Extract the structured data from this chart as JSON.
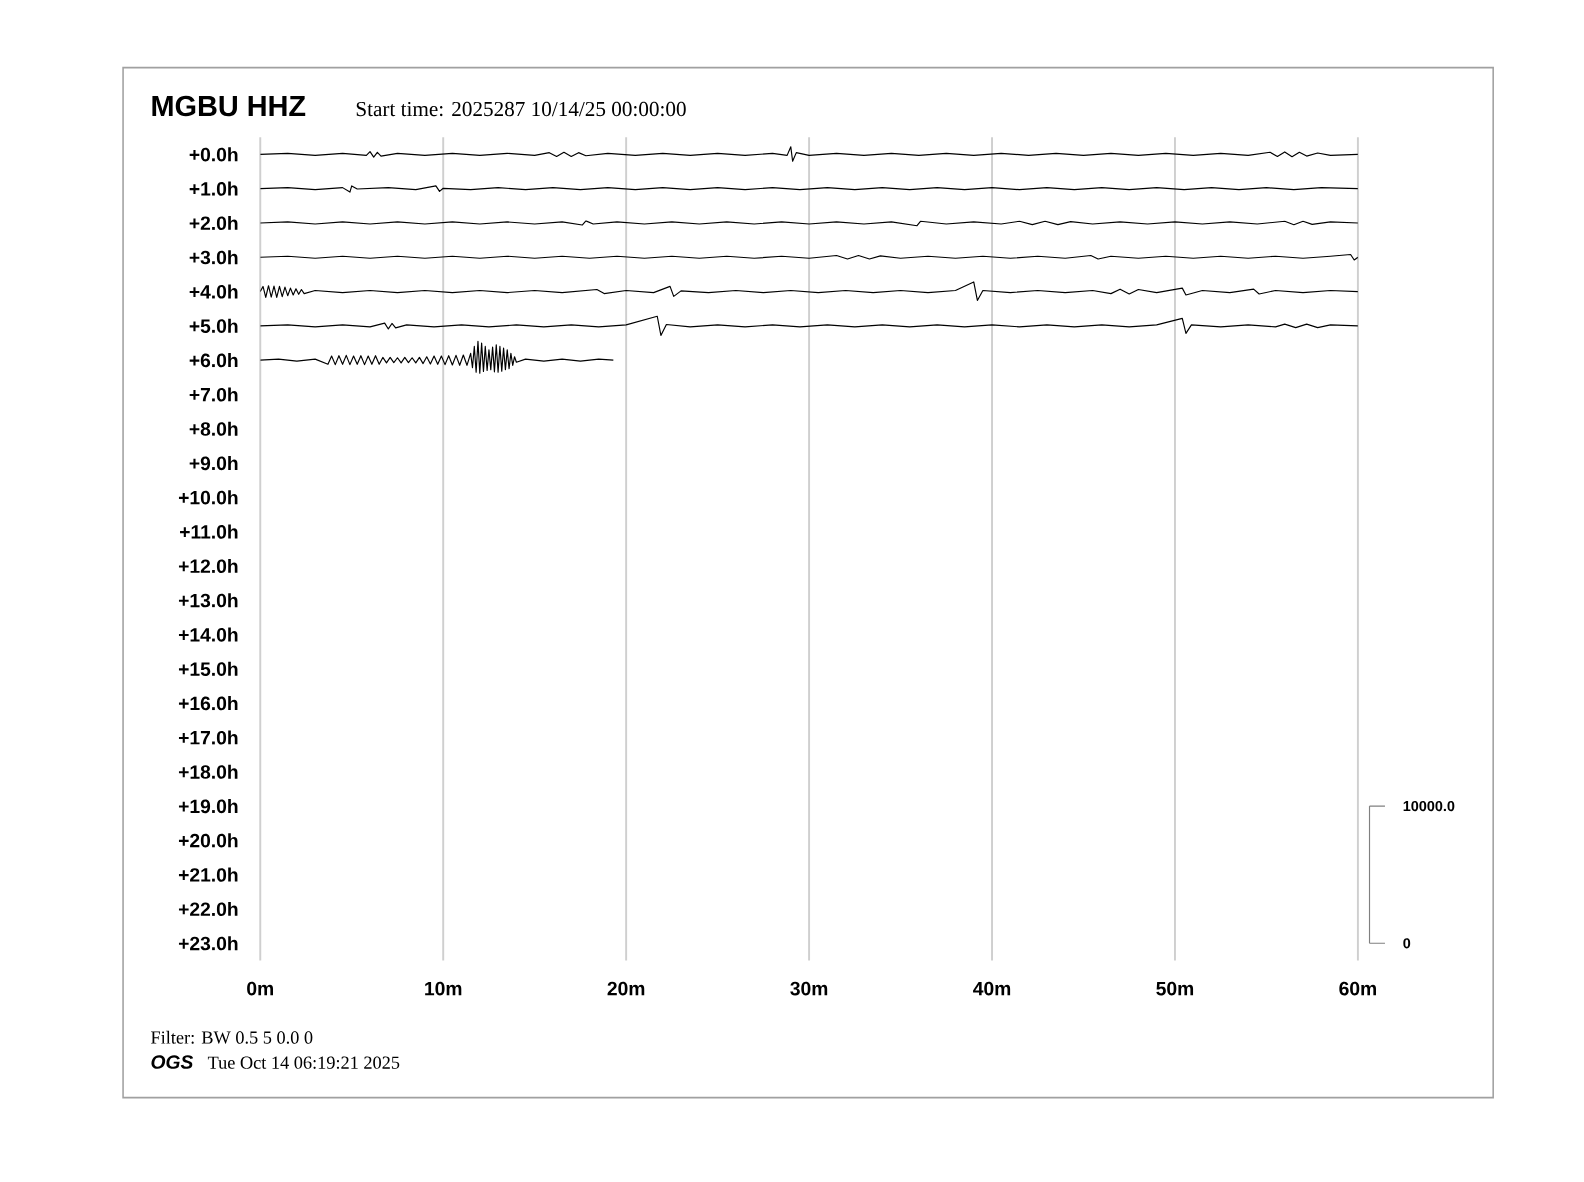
{
  "chart_data": {
    "type": "line",
    "title": "MGBU HHZ",
    "subtitle": "Start time: 2025287 10/14/25 00:00:00",
    "annotations": [
      "Filter: BW 0.5 5 0.0 0",
      "OGS",
      "Tue Oct 14 06:19:21 2025"
    ],
    "xlim": [
      0,
      60
    ],
    "xticks": [
      {
        "value": 0,
        "label": "0m"
      },
      {
        "value": 10,
        "label": "10m"
      },
      {
        "value": 20,
        "label": "20m"
      },
      {
        "value": 30,
        "label": "30m"
      },
      {
        "value": 40,
        "label": "40m"
      },
      {
        "value": 50,
        "label": "50m"
      },
      {
        "value": 60,
        "label": "60m"
      }
    ],
    "ylim": [
      23.5,
      -0.5
    ],
    "yticks": [
      {
        "value": 0,
        "label": "+0.0h"
      },
      {
        "value": 1,
        "label": "+1.0h"
      },
      {
        "value": 2,
        "label": "+2.0h"
      },
      {
        "value": 3,
        "label": "+3.0h"
      },
      {
        "value": 4,
        "label": "+4.0h"
      },
      {
        "value": 5,
        "label": "+5.0h"
      },
      {
        "value": 6,
        "label": "+6.0h"
      },
      {
        "value": 7,
        "label": "+7.0h"
      },
      {
        "value": 8,
        "label": "+8.0h"
      },
      {
        "value": 9,
        "label": "+9.0h"
      },
      {
        "value": 10,
        "label": "+10.0h"
      },
      {
        "value": 11,
        "label": "+11.0h"
      },
      {
        "value": 12,
        "label": "+12.0h"
      },
      {
        "value": 13,
        "label": "+13.0h"
      },
      {
        "value": 14,
        "label": "+14.0h"
      },
      {
        "value": 15,
        "label": "+15.0h"
      },
      {
        "value": 16,
        "label": "+16.0h"
      },
      {
        "value": 17,
        "label": "+17.0h"
      },
      {
        "value": 18,
        "label": "+18.0h"
      },
      {
        "value": 19,
        "label": "+19.0h"
      },
      {
        "value": 20,
        "label": "+20.0h"
      },
      {
        "value": 21,
        "label": "+21.0h"
      },
      {
        "value": 22,
        "label": "+22.0h"
      },
      {
        "value": 23,
        "label": "+23.0h"
      }
    ],
    "y2lim": [
      -1250,
      58750
    ],
    "y2ticks": [
      0,
      {
        "value": 10000,
        "label": "10000.0"
      }
    ],
    "grid": "x",
    "series": [
      {
        "color": "#000000",
        "x": [
          0,
          1.5,
          3,
          4.5,
          5.8,
          6.0,
          6.2,
          6.4,
          6.6,
          7.5,
          9,
          10.5,
          12,
          13.5,
          15,
          15.8,
          16.2,
          16.6,
          17.0,
          17.4,
          17.8,
          19,
          20.5,
          22,
          23.5,
          25,
          26.5,
          28,
          28.8,
          29.0,
          29.1,
          29.3,
          30,
          31.5,
          33,
          34.5,
          36,
          37.5,
          39,
          40.5,
          42,
          43.5,
          45,
          46.5,
          48,
          49.5,
          51,
          52.5,
          54,
          55.2,
          55.6,
          56.0,
          56.4,
          56.8,
          57.2,
          57.8,
          58.5,
          60
        ],
        "values": [
          0,
          -0.03,
          0.03,
          -0.03,
          0.03,
          -0.08,
          0.08,
          -0.06,
          0.05,
          -0.03,
          0.03,
          -0.03,
          0.03,
          -0.03,
          0.03,
          -0.05,
          0.06,
          -0.06,
          0.06,
          -0.05,
          0.04,
          -0.03,
          0.03,
          -0.03,
          0.03,
          -0.03,
          0.03,
          -0.03,
          0.03,
          -0.22,
          0.2,
          -0.05,
          0.03,
          -0.03,
          0.03,
          -0.03,
          0.03,
          -0.03,
          0.03,
          -0.03,
          0.03,
          -0.03,
          0.03,
          -0.03,
          0.03,
          -0.03,
          0.03,
          -0.03,
          0.03,
          -0.06,
          0.06,
          -0.07,
          0.07,
          -0.06,
          0.05,
          -0.04,
          0.03,
          0
        ]
      },
      {
        "color": "#000000",
        "x": [
          0,
          1.5,
          3,
          4.5,
          4.9,
          5.0,
          5.3,
          7,
          8.5,
          9.6,
          9.8,
          10,
          11.5,
          13,
          14.5,
          16,
          17.5,
          19,
          20.5,
          22,
          23.5,
          25,
          26.5,
          28,
          29.5,
          31,
          32.5,
          34,
          35.5,
          37,
          38.5,
          40,
          41.5,
          43,
          44.5,
          46,
          47.5,
          49,
          50.5,
          52,
          53.5,
          55,
          56.5,
          58,
          60
        ],
        "values": [
          1,
          0.97,
          1.03,
          0.97,
          1.1,
          0.92,
          1.01,
          0.97,
          1.03,
          0.92,
          1.08,
          0.99,
          1.03,
          0.97,
          1.03,
          0.97,
          1.03,
          0.97,
          1.03,
          0.97,
          1.03,
          0.97,
          1.03,
          0.97,
          1.03,
          0.97,
          1.03,
          0.97,
          1.03,
          0.97,
          1.03,
          0.97,
          1.03,
          0.97,
          1.03,
          0.97,
          1.03,
          0.97,
          1.03,
          0.97,
          1.03,
          0.97,
          1.03,
          0.97,
          1
        ]
      },
      {
        "color": "#000000",
        "x": [
          0,
          1.5,
          3,
          4.5,
          6,
          7.5,
          9,
          10.5,
          12,
          13.5,
          15,
          16.5,
          17.6,
          17.8,
          18.2,
          19.5,
          21,
          22.5,
          24,
          25.5,
          27,
          28.5,
          30,
          31.5,
          33,
          34.5,
          35.9,
          36.1,
          37.5,
          39,
          40.5,
          41.5,
          42.2,
          42.9,
          43.6,
          44.3,
          45.5,
          47,
          48.5,
          50,
          51.5,
          53,
          54.5,
          56.0,
          56.5,
          57.0,
          57.5,
          58.5,
          60
        ],
        "values": [
          2,
          1.97,
          2.03,
          1.97,
          2.03,
          1.97,
          2.03,
          1.97,
          2.03,
          1.97,
          2.03,
          1.97,
          2.06,
          1.94,
          2.03,
          1.97,
          2.03,
          1.97,
          2.03,
          1.97,
          2.03,
          1.97,
          2.03,
          1.97,
          2.03,
          1.97,
          2.08,
          1.95,
          2.03,
          1.97,
          2.03,
          1.95,
          2.05,
          1.95,
          2.05,
          1.96,
          2.03,
          1.97,
          2.03,
          1.97,
          2.03,
          1.97,
          2.03,
          1.95,
          2.05,
          1.95,
          2.04,
          1.97,
          2
        ]
      },
      {
        "color": "#000000",
        "x": [
          0,
          1.5,
          3,
          4.5,
          6,
          7.5,
          9,
          10.5,
          12,
          13.5,
          15,
          16.5,
          18,
          19.5,
          21,
          22.5,
          24,
          25.5,
          27,
          28.5,
          30,
          31.5,
          32.1,
          32.7,
          33.3,
          33.9,
          35,
          36.5,
          38,
          39.5,
          41,
          42.5,
          44,
          45.4,
          45.8,
          46.5,
          48,
          49.5,
          51,
          52.5,
          54,
          55.5,
          57,
          58.5,
          59.6,
          59.8,
          60
        ],
        "values": [
          3,
          2.97,
          3.03,
          2.97,
          3.03,
          2.97,
          3.03,
          2.97,
          3.03,
          2.97,
          3.03,
          2.97,
          3.03,
          2.97,
          3.03,
          2.97,
          3.03,
          2.97,
          3.03,
          2.97,
          3.03,
          2.95,
          3.05,
          2.95,
          3.05,
          2.96,
          3.03,
          2.97,
          3.03,
          2.97,
          3.03,
          2.97,
          3.03,
          2.95,
          3.05,
          2.97,
          3.03,
          2.97,
          3.03,
          2.97,
          3.03,
          2.97,
          3.03,
          2.97,
          2.92,
          3.08,
          3
        ]
      },
      {
        "color": "#000000",
        "x": [
          0,
          0.15,
          0.3,
          0.45,
          0.6,
          0.75,
          0.9,
          1.05,
          1.2,
          1.35,
          1.5,
          1.65,
          1.8,
          1.95,
          2.1,
          2.25,
          2.4,
          3,
          4.5,
          6,
          7.5,
          9,
          10.5,
          12,
          13.5,
          15,
          16.5,
          18.4,
          18.8,
          20,
          21.5,
          22.4,
          22.6,
          23,
          24.5,
          26,
          27.5,
          29,
          30.5,
          32,
          33.5,
          35,
          36.5,
          38,
          39.0,
          39.2,
          39.5,
          41,
          42.5,
          44,
          45.5,
          46.5,
          47.0,
          47.5,
          48.0,
          49,
          50.4,
          50.6,
          51.5,
          53,
          54.3,
          54.6,
          55.5,
          57,
          58.5,
          60
        ],
        "values": [
          4,
          3.85,
          4.17,
          3.83,
          4.16,
          3.84,
          4.17,
          3.85,
          4.15,
          3.87,
          4.12,
          3.9,
          4.1,
          3.92,
          4.08,
          3.94,
          4.06,
          3.97,
          4.03,
          3.97,
          4.03,
          3.97,
          4.03,
          3.97,
          4.03,
          3.97,
          4.03,
          3.94,
          4.06,
          3.97,
          4.03,
          3.85,
          4.14,
          3.98,
          4.03,
          3.97,
          4.03,
          3.97,
          4.03,
          3.97,
          4.03,
          3.97,
          4.03,
          3.97,
          3.72,
          4.26,
          3.97,
          4.03,
          3.97,
          4.03,
          3.97,
          4.06,
          3.93,
          4.07,
          3.94,
          4.03,
          3.9,
          4.1,
          3.97,
          4.03,
          3.93,
          4.07,
          3.97,
          4.03,
          3.97,
          4
        ]
      },
      {
        "color": "#000000",
        "x": [
          0,
          1.5,
          3,
          4.5,
          6,
          6.8,
          7.0,
          7.2,
          7.4,
          8,
          9.5,
          11,
          12.5,
          14,
          15.5,
          17,
          18.5,
          20,
          21.7,
          21.9,
          22.2,
          23.5,
          25,
          26.5,
          28,
          29.5,
          31,
          32.5,
          34,
          35.5,
          37,
          38.5,
          40,
          41.5,
          43,
          44.5,
          46,
          47.5,
          49,
          50.4,
          50.6,
          50.9,
          52.5,
          54,
          55.5,
          56.0,
          56.6,
          57.2,
          57.8,
          58.5,
          60
        ],
        "values": [
          5,
          4.97,
          5.03,
          4.97,
          5.03,
          4.92,
          5.09,
          4.93,
          5.06,
          4.97,
          5.03,
          4.97,
          5.03,
          4.97,
          5.03,
          4.97,
          5.03,
          4.97,
          4.72,
          5.28,
          4.96,
          5.03,
          4.97,
          5.03,
          4.97,
          5.03,
          4.97,
          5.03,
          4.97,
          5.03,
          4.97,
          5.03,
          4.97,
          5.03,
          4.97,
          5.03,
          4.97,
          5.03,
          4.97,
          4.78,
          5.22,
          4.97,
          5.03,
          4.97,
          5.03,
          4.95,
          5.05,
          4.95,
          5.05,
          4.97,
          5
        ]
      },
      {
        "color": "#000000",
        "x": [
          0,
          1,
          2,
          3,
          3.7,
          3.9,
          4.1,
          4.3,
          4.5,
          4.7,
          4.9,
          5.1,
          5.3,
          5.5,
          5.7,
          5.9,
          6.1,
          6.3,
          6.5,
          6.7,
          6.9,
          7.1,
          7.3,
          7.5,
          7.7,
          7.9,
          8.1,
          8.3,
          8.5,
          8.7,
          8.9,
          9.1,
          9.3,
          9.5,
          9.7,
          9.9,
          10.1,
          10.3,
          10.5,
          10.7,
          10.9,
          11.1,
          11.3,
          11.5,
          11.6,
          11.7,
          11.8,
          11.9,
          12.0,
          12.1,
          12.2,
          12.3,
          12.4,
          12.5,
          12.6,
          12.7,
          12.8,
          12.9,
          13.0,
          13.1,
          13.2,
          13.3,
          13.4,
          13.5,
          13.6,
          13.7,
          13.8,
          13.9,
          14.0,
          14.5,
          15.5,
          16.5,
          17.5,
          18.5,
          19.3
        ],
        "values": [
          6,
          5.97,
          6.03,
          5.97,
          6.12,
          5.88,
          6.13,
          5.87,
          6.12,
          5.86,
          6.13,
          5.88,
          6.12,
          5.87,
          6.13,
          5.88,
          6.12,
          5.87,
          6.12,
          5.92,
          6.08,
          5.92,
          6.07,
          5.93,
          6.08,
          5.92,
          6.07,
          5.93,
          6.08,
          5.92,
          6.1,
          5.9,
          6.11,
          5.88,
          6.12,
          5.88,
          6.13,
          5.87,
          6.14,
          5.86,
          6.15,
          5.85,
          6.15,
          5.8,
          6.22,
          5.6,
          6.35,
          5.45,
          6.38,
          5.5,
          6.33,
          5.6,
          6.3,
          5.7,
          6.28,
          5.62,
          6.34,
          5.55,
          6.35,
          5.6,
          6.32,
          5.65,
          6.28,
          5.7,
          6.25,
          5.8,
          6.15,
          5.9,
          6.06,
          5.97,
          6.03,
          5.97,
          6.03,
          5.97,
          6
        ]
      }
    ]
  }
}
